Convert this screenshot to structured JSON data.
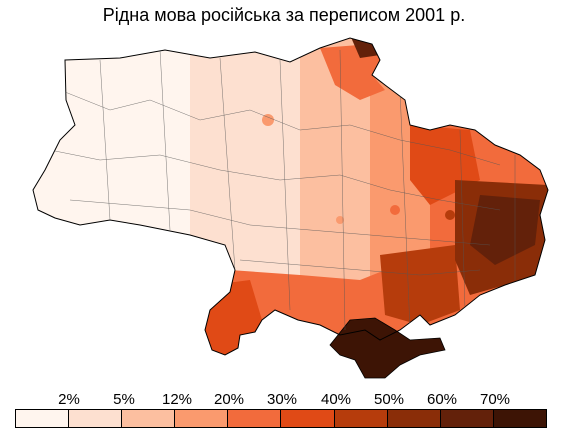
{
  "title": "Рідна мова російська за переписом 2001 р.",
  "legend": {
    "thresholds": [
      "2%",
      "5%",
      "12%",
      "20%",
      "30%",
      "40%",
      "50%",
      "60%",
      "70%"
    ],
    "colors": [
      "#fff5ee",
      "#fde0d0",
      "#fcbfa0",
      "#fa9a6e",
      "#f26b3c",
      "#e04a16",
      "#b63c0c",
      "#8a2d08",
      "#63210a",
      "#3d1405"
    ]
  },
  "map": {
    "outline_color": "#000000",
    "region_shares": {
      "west": "<2%",
      "central_north": "2–12%",
      "kharkiv_sumy_border": "30–60%",
      "south_odesa": "20–50%",
      "zaporizhzhia_kherson": "30–60%",
      "donbas": "60–70%+",
      "crimea": ">70%"
    }
  }
}
